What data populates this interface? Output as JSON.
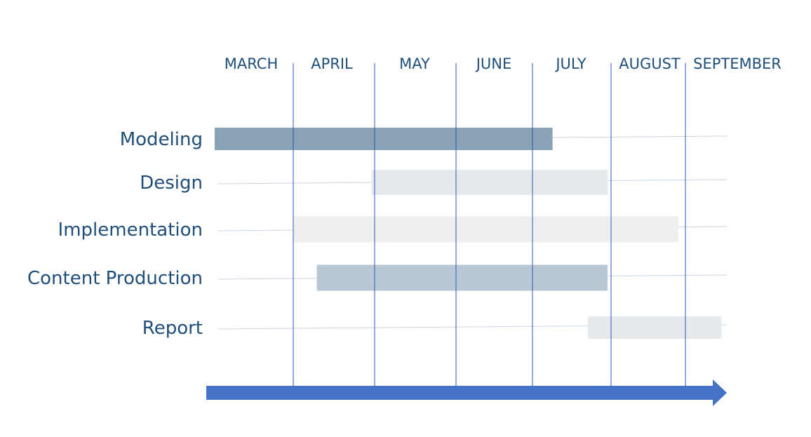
{
  "chart_data": {
    "type": "gantt",
    "title": "",
    "xlabel": "",
    "ylabel": "",
    "months": [
      "MARCH",
      "APRIL",
      "MAY",
      "JUNE",
      "JULY",
      "AUGUST",
      "SEPTEMBER"
    ],
    "tasks": [
      {
        "name": "Modeling",
        "start": 0.0,
        "end": 4.3,
        "color": "#8aa2b5"
      },
      {
        "name": "Design",
        "start": 2.0,
        "end": 5.0,
        "color": "#e5e9ec"
      },
      {
        "name": "Implementation",
        "start": 1.0,
        "end": 5.9,
        "color": "#efefef"
      },
      {
        "name": "Content Production",
        "start": 1.3,
        "end": 5.0,
        "color": "#b8c7d3"
      },
      {
        "name": "Report",
        "start": 4.75,
        "end": 6.45,
        "color": "#e6eaed"
      }
    ],
    "x_unit": "months elapsed from start of MARCH",
    "grid": "vertical month dividers",
    "axis_arrow_color": "#4472c4",
    "divider_color": "#2f55b8",
    "text_color": "#1f4e79"
  }
}
